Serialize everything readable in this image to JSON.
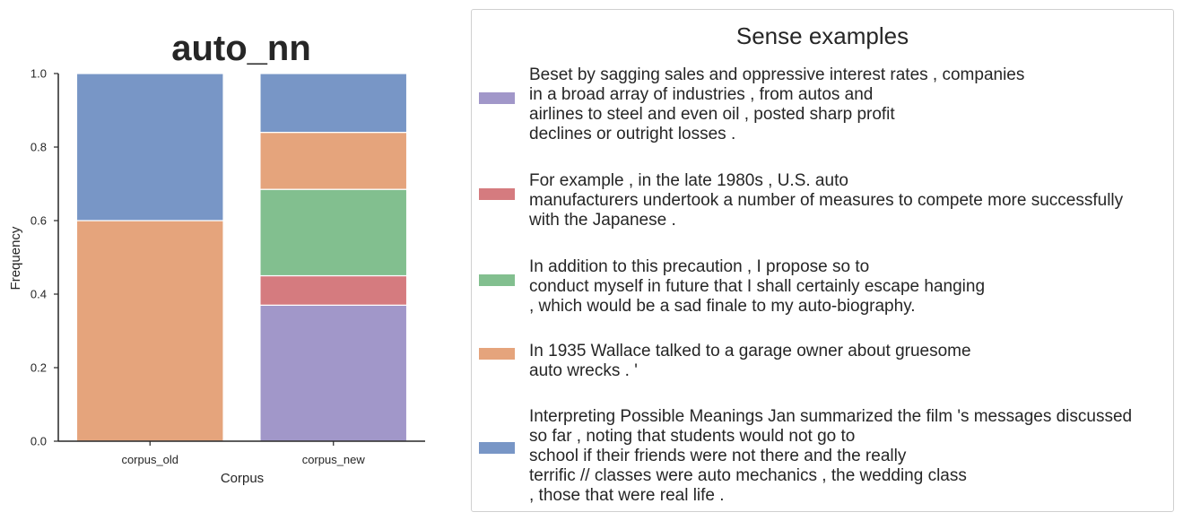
{
  "chart_data": {
    "type": "bar",
    "stacked": true,
    "title": "auto_nn",
    "xlabel": "Corpus",
    "ylabel": "Frequency",
    "ylim": [
      0,
      1.0
    ],
    "yticks": [
      "0.0",
      "0.2",
      "0.4",
      "0.6",
      "0.8",
      "1.0"
    ],
    "categories": [
      "corpus_old",
      "corpus_new"
    ],
    "series": [
      {
        "key": "purple",
        "color": "#a197c9",
        "values": [
          0.0,
          0.37
        ]
      },
      {
        "key": "red",
        "color": "#d57b7f",
        "values": [
          0.0,
          0.08
        ]
      },
      {
        "key": "green",
        "color": "#82bf8f",
        "values": [
          0.0,
          0.235
        ]
      },
      {
        "key": "orange",
        "color": "#e5a47c",
        "values": [
          0.6,
          0.155
        ]
      },
      {
        "key": "blue",
        "color": "#7896c6",
        "values": [
          0.4,
          0.16
        ]
      }
    ],
    "grid": false,
    "legend_placement": "right"
  },
  "legend": {
    "title": "Sense examples",
    "items": [
      {
        "color": "#a197c9",
        "text": "Beset by sagging sales and oppressive interest rates , companies\nin a broad array of industries , from autos and\nairlines to steel and even oil , posted sharp profit\ndeclines or outright losses ."
      },
      {
        "color": "#d57b7f",
        "text": "For example , in the late 1980s , U.S. auto\nmanufacturers undertook a number of measures to compete more successfully\nwith the Japanese ."
      },
      {
        "color": "#82bf8f",
        "text": "In addition to this precaution , I propose so to\nconduct myself in future that I shall certainly escape hanging\n, which would be a sad finale to my auto-biography."
      },
      {
        "color": "#e5a47c",
        "text": "In 1935 Wallace talked to a garage owner about gruesome\nauto wrecks . '"
      },
      {
        "color": "#7896c6",
        "text": "Interpreting Possible Meanings Jan summarized the film 's messages discussed\nso far , noting that students would not go to\nschool if their friends were not there and the really\nterrific // classes were auto mechanics , the wedding class\n, those that were real life ."
      }
    ]
  }
}
